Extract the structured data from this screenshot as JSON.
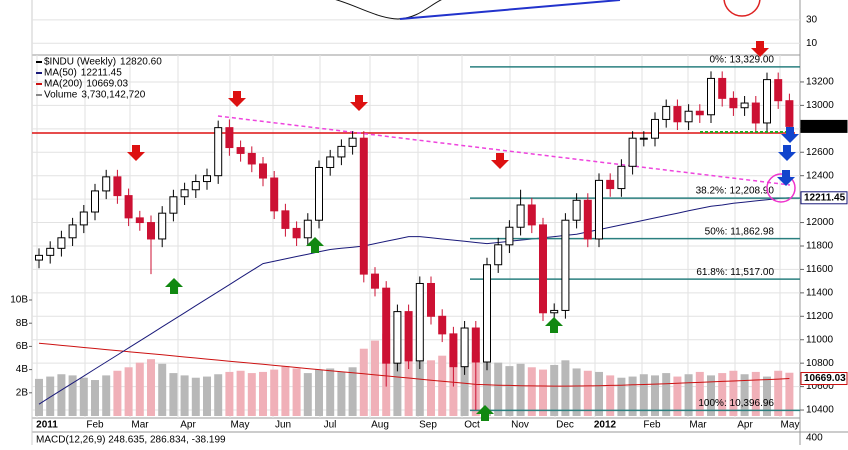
{
  "chart_data": {
    "type": "candlestick",
    "legend": [
      {
        "name": "$INDU (Weekly)",
        "value": {
          "value": 12820.6,
          "label": "12820.60"
        },
        "color": "#000000"
      },
      {
        "name": "MA(50)",
        "value": 12211.45,
        "color": "#1a1a7a"
      },
      {
        "name": "MA(200)",
        "value": 10669.03,
        "color": "#cc1111"
      },
      {
        "name": "Volume",
        "value": {
          "value": 3730142720,
          "label": "3,730,142,720"
        },
        "color": "#888888"
      }
    ],
    "x_labels": [
      "2011",
      "Feb",
      "Mar",
      "Apr",
      "May",
      "Jun",
      "Jul",
      "Aug",
      "Sep",
      "Oct",
      "Nov",
      "Dec",
      "2012",
      "Feb",
      "Mar",
      "Apr",
      "May"
    ],
    "open": [
      11680,
      11720,
      11780,
      11870,
      11980,
      12090,
      12270,
      12390,
      12230,
      12040,
      12000,
      11860,
      12080,
      12220,
      12280,
      12350,
      12400,
      12810,
      12640,
      12590,
      12500,
      12380,
      12100,
      11950,
      11870,
      12020,
      12470,
      12560,
      12650,
      12720,
      11560,
      11440,
      10800,
      11240,
      10820,
      11480,
      11200,
      11050,
      10770,
      11100,
      10810,
      11640,
      11810,
      11960,
      12150,
      11980,
      11230,
      11250,
      12020,
      12190,
      11860,
      12360,
      12290,
      12480,
      12720,
      12720,
      12880,
      12990,
      12860,
      12950,
      12920,
      13230,
      13060,
      12980,
      13020,
      12850,
      13220,
      13040
    ],
    "high": [
      11780,
      11840,
      11930,
      12040,
      12150,
      12330,
      12450,
      12450,
      12290,
      12100,
      12060,
      12140,
      12280,
      12340,
      12410,
      12460,
      12870,
      12880,
      12700,
      12650,
      12560,
      12440,
      12160,
      12010,
      12080,
      12530,
      12620,
      12710,
      12780,
      12780,
      11620,
      11500,
      11300,
      11300,
      11540,
      11540,
      11260,
      11110,
      11160,
      11160,
      11700,
      11870,
      12020,
      12280,
      12210,
      12040,
      11310,
      12080,
      12250,
      12250,
      12420,
      12420,
      12540,
      12780,
      12780,
      12940,
      13050,
      13050,
      13010,
      13010,
      13290,
      13290,
      13120,
      13080,
      13080,
      13280,
      13280,
      13100
    ],
    "low": [
      11610,
      11650,
      11710,
      11800,
      11910,
      12020,
      12200,
      12160,
      11970,
      11930,
      11560,
      11790,
      12010,
      12150,
      12210,
      12280,
      12330,
      12570,
      12520,
      12430,
      12310,
      12030,
      11880,
      11800,
      11800,
      11950,
      12400,
      12490,
      12580,
      11490,
      11370,
      10600,
      10730,
      10750,
      10750,
      11130,
      10980,
      10600,
      10700,
      10400,
      10740,
      11570,
      11740,
      11890,
      11910,
      11160,
      11160,
      11180,
      11950,
      11790,
      11790,
      12220,
      12220,
      12410,
      12650,
      12650,
      12810,
      12790,
      12790,
      12850,
      12850,
      12990,
      12910,
      12910,
      12780,
      12780,
      12970,
      12750
    ],
    "close": [
      11720,
      11780,
      11870,
      11980,
      12090,
      12270,
      12390,
      12230,
      12040,
      12000,
      11860,
      12080,
      12220,
      12280,
      12350,
      12400,
      12810,
      12640,
      12590,
      12500,
      12380,
      12100,
      11950,
      11870,
      12020,
      12470,
      12560,
      12650,
      12720,
      11560,
      11440,
      10800,
      11240,
      10820,
      11480,
      11200,
      11050,
      10770,
      11100,
      10810,
      11640,
      11810,
      11960,
      12150,
      11980,
      11230,
      11250,
      12020,
      12190,
      11860,
      12360,
      12290,
      12480,
      12720,
      12720,
      12880,
      12990,
      12860,
      12950,
      12920,
      13230,
      13060,
      12980,
      13020,
      12850,
      13220,
      13040,
      12820.6
    ],
    "volume": [
      3200000000,
      3400000000,
      3600000000,
      3500000000,
      3300000000,
      3100000000,
      3500000000,
      3900000000,
      4200000000,
      4600000000,
      4900000000,
      4500000000,
      3700000000,
      3500000000,
      3300000000,
      3400000000,
      3600000000,
      3800000000,
      3900000000,
      3700000000,
      3800000000,
      4000000000,
      4300000000,
      4100000000,
      3700000000,
      4000000000,
      4100000000,
      3800000000,
      4200000000,
      5800000000,
      6500000000,
      7100000000,
      5900000000,
      5400000000,
      5000000000,
      4800000000,
      5200000000,
      5600000000,
      6100000000,
      5500000000,
      4900000000,
      4600000000,
      4300000000,
      4500000000,
      4200000000,
      4000000000,
      4400000000,
      4800000000,
      4100000000,
      3900000000,
      3800000000,
      3500000000,
      3300000000,
      3400000000,
      3600000000,
      3500000000,
      3700000000,
      3400000000,
      3600000000,
      3800000000,
      3500000000,
      3700000000,
      3900000000,
      3600000000,
      3800000000,
      3400000000,
      3900000000,
      3730142720
    ],
    "ma50": [
      10450,
      10510,
      10570,
      10630,
      10690,
      10750,
      10810,
      10870,
      10930,
      10990,
      11050,
      11110,
      11170,
      11230,
      11290,
      11350,
      11410,
      11470,
      11530,
      11590,
      11650,
      11670,
      11690,
      11710,
      11730,
      11750,
      11770,
      11780,
      11790,
      11800,
      11820,
      11840,
      11860,
      11880,
      11880,
      11870,
      11860,
      11850,
      11840,
      11830,
      11820,
      11830,
      11840,
      11850,
      11860,
      11870,
      11880,
      11890,
      11900,
      11920,
      11940,
      11960,
      11980,
      12000,
      12020,
      12040,
      12060,
      12080,
      12100,
      12120,
      12140,
      12150,
      12165,
      12175,
      12185,
      12195,
      12205,
      12211.45
    ],
    "ma200": [
      10970,
      10961,
      10952,
      10943,
      10934,
      10925,
      10916,
      10907,
      10898,
      10889,
      10880,
      10871,
      10862,
      10853,
      10844,
      10835,
      10826,
      10817,
      10808,
      10799,
      10790,
      10781,
      10772,
      10763,
      10754,
      10745,
      10736,
      10727,
      10718,
      10709,
      10700,
      10691,
      10682,
      10673,
      10664,
      10655,
      10646,
      10637,
      10628,
      10619,
      10615,
      10612,
      10610,
      10608,
      10606,
      10605,
      10604,
      10604,
      10605,
      10606,
      10608,
      10610,
      10612,
      10615,
      10618,
      10621,
      10624,
      10628,
      10632,
      10636,
      10640,
      10644,
      10648,
      10652,
      10656,
      10660,
      10664,
      10669.03
    ],
    "up_color": "#000000",
    "down_color": "#cc1133",
    "volume_up_color": "#b8b8b8",
    "volume_down_color": "#f0b0b8",
    "ylim": [
      10332,
      13430
    ],
    "yticks": [
      10400,
      10600,
      10800,
      11000,
      11200,
      11400,
      11600,
      11800,
      12000,
      12200,
      12400,
      12600,
      12800,
      13000,
      13200
    ],
    "volume_lim": [
      0,
      10000000000
    ],
    "volume_ticks": [
      {
        "value": 2000000000,
        "label": "2B"
      },
      {
        "value": 4000000000,
        "label": "4B"
      },
      {
        "value": 6000000000,
        "label": "6B"
      },
      {
        "value": 8000000000,
        "label": "8B"
      },
      {
        "value": 10000000000,
        "label": "10B"
      }
    ],
    "price_labels": [
      {
        "value": 12820.6,
        "label": "12820.60"
      },
      {
        "value": 12211.45,
        "label": "12211.45"
      },
      {
        "value": 10669.03,
        "label": "10669.03"
      }
    ],
    "fib_levels": [
      {
        "value": 13329,
        "label": "0%: 13,329.00"
      },
      {
        "value": 12208.9,
        "label": "38.2%: 12,208.90"
      },
      {
        "value": 11862.98,
        "label": "50%: 11,862.98"
      },
      {
        "value": 11517,
        "label": "61.8%: 11,517.00"
      },
      {
        "value": 10396.96,
        "label": "100%: 10,396.96"
      }
    ],
    "grid": true,
    "upper_panel": {
      "ylim": [
        0,
        47
      ],
      "yticks": [
        30,
        10
      ]
    },
    "lower_panel": {
      "text": "MACD(12,26,9) 248.635, 286.834, -38.199",
      "yticks": [
        400
      ]
    }
  }
}
